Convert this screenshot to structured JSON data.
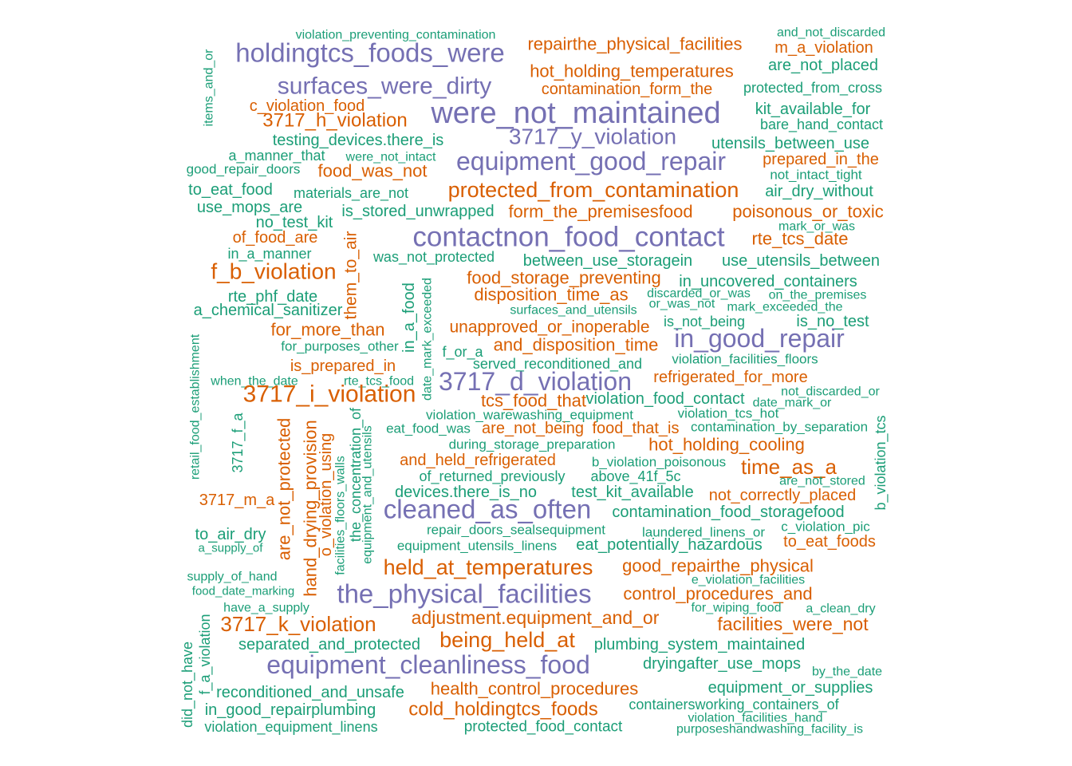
{
  "colors": {
    "purple": "#7570b3",
    "orange": "#d95f02",
    "teal": "#1b9e77"
  },
  "words": [
    {
      "text": "violation_preventing_contamination",
      "color": "teal"
    },
    {
      "text": "repairthe_physical_facilities",
      "color": "orange"
    },
    {
      "text": "and_not_discarded",
      "color": "teal"
    },
    {
      "text": "m_a_violation",
      "color": "orange"
    },
    {
      "text": "holdingtcs_foods_were",
      "color": "purple"
    },
    {
      "text": "are_not_placed",
      "color": "teal"
    },
    {
      "text": "items_and_or",
      "color": "teal"
    },
    {
      "text": "hot_holding_temperatures",
      "color": "orange"
    },
    {
      "text": "surfaces_were_dirty",
      "color": "purple"
    },
    {
      "text": "contamination_form_the",
      "color": "orange"
    },
    {
      "text": "protected_from_cross",
      "color": "teal"
    },
    {
      "text": "c_violation_food",
      "color": "orange"
    },
    {
      "text": "were_not_maintained",
      "color": "purple"
    },
    {
      "text": "kit_available_for",
      "color": "teal"
    },
    {
      "text": "3717_h_violation",
      "color": "orange"
    },
    {
      "text": "bare_hand_contact",
      "color": "teal"
    },
    {
      "text": "3717_y_violation",
      "color": "purple"
    },
    {
      "text": "testing_devices.there_is",
      "color": "teal"
    },
    {
      "text": "utensils_between_use",
      "color": "teal"
    },
    {
      "text": "a_manner_that",
      "color": "teal"
    },
    {
      "text": "were_not_intact",
      "color": "teal"
    },
    {
      "text": "equipment_good_repair",
      "color": "purple"
    },
    {
      "text": "prepared_in_the",
      "color": "orange"
    },
    {
      "text": "good_repair_doors",
      "color": "teal"
    },
    {
      "text": "food_was_not",
      "color": "orange"
    },
    {
      "text": "not_intact_tight",
      "color": "teal"
    },
    {
      "text": "to_eat_food",
      "color": "teal"
    },
    {
      "text": "materials_are_not",
      "color": "teal"
    },
    {
      "text": "protected_from_contamination",
      "color": "orange"
    },
    {
      "text": "air_dry_without",
      "color": "teal"
    },
    {
      "text": "use_mops_are",
      "color": "teal"
    },
    {
      "text": "is_stored_unwrapped",
      "color": "teal"
    },
    {
      "text": "form_the_premisesfood",
      "color": "orange"
    },
    {
      "text": "poisonous_or_toxic",
      "color": "orange"
    },
    {
      "text": "no_test_kit",
      "color": "teal"
    },
    {
      "text": "mark_or_was",
      "color": "teal"
    },
    {
      "text": "of_food_are",
      "color": "orange"
    },
    {
      "text": "them_to_air",
      "color": "orange"
    },
    {
      "text": "contactnon_food_contact",
      "color": "purple"
    },
    {
      "text": "rte_tcs_date",
      "color": "orange"
    },
    {
      "text": "in_a_manner",
      "color": "teal"
    },
    {
      "text": "was_not_protected",
      "color": "teal"
    },
    {
      "text": "between_use_storagein",
      "color": "teal"
    },
    {
      "text": "use_utensils_between",
      "color": "teal"
    },
    {
      "text": "f_b_violation",
      "color": "orange"
    },
    {
      "text": "in_a_food",
      "color": "teal"
    },
    {
      "text": "food_storage_preventing",
      "color": "orange"
    },
    {
      "text": "in_uncovered_containers",
      "color": "teal"
    },
    {
      "text": "date_mark_exceeded",
      "color": "teal"
    },
    {
      "text": "rte_phf_date",
      "color": "teal"
    },
    {
      "text": "disposition_time_as",
      "color": "orange"
    },
    {
      "text": "discarded_or_was",
      "color": "teal"
    },
    {
      "text": "on_the_premises",
      "color": "teal"
    },
    {
      "text": "a_chemical_sanitizer",
      "color": "teal"
    },
    {
      "text": "surfaces_and_utensils",
      "color": "teal"
    },
    {
      "text": "or_was_not",
      "color": "teal"
    },
    {
      "text": "mark_exceeded_the",
      "color": "teal"
    },
    {
      "text": "for_more_than",
      "color": "orange"
    },
    {
      "text": "is_not_being",
      "color": "teal"
    },
    {
      "text": "is_no_test",
      "color": "teal"
    },
    {
      "text": "retail_food_establishment",
      "color": "teal"
    },
    {
      "text": "unapproved_or_inoperable",
      "color": "orange"
    },
    {
      "text": "for_purposes_other",
      "color": "teal"
    },
    {
      "text": "in_good_repair",
      "color": "purple"
    },
    {
      "text": "f_or_a",
      "color": "teal"
    },
    {
      "text": "and_disposition_time",
      "color": "orange"
    },
    {
      "text": "is_prepared_in",
      "color": "orange"
    },
    {
      "text": "served_reconditioned_and",
      "color": "teal"
    },
    {
      "text": "violation_facilities_floors",
      "color": "teal"
    },
    {
      "text": "when_the_date",
      "color": "teal"
    },
    {
      "text": "rte_tcs_food",
      "color": "teal"
    },
    {
      "text": "3717_d_violation",
      "color": "purple"
    },
    {
      "text": "refrigerated_for_more",
      "color": "orange"
    },
    {
      "text": "3717_i_violation",
      "color": "orange"
    },
    {
      "text": "not_discarded_or",
      "color": "teal"
    },
    {
      "text": "tcs_food_that",
      "color": "orange"
    },
    {
      "text": "violation_food_contact",
      "color": "teal"
    },
    {
      "text": "date_mark_or",
      "color": "teal"
    },
    {
      "text": "3717_f_a",
      "color": "teal"
    },
    {
      "text": "violation_warewashing_equipment",
      "color": "teal"
    },
    {
      "text": "violation_tcs_hot",
      "color": "teal"
    },
    {
      "text": "eat_food_was",
      "color": "teal"
    },
    {
      "text": "are_not_being",
      "color": "orange"
    },
    {
      "text": "food_that_is",
      "color": "orange"
    },
    {
      "text": "contamination_by_separation",
      "color": "teal"
    },
    {
      "text": "the_concentration_of",
      "color": "teal"
    },
    {
      "text": "equipment_and_utensils",
      "color": "teal"
    },
    {
      "text": "during_storage_preparation",
      "color": "teal"
    },
    {
      "text": "hot_holding_cooling",
      "color": "orange"
    },
    {
      "text": "are_not_protected",
      "color": "orange"
    },
    {
      "text": "hand_drying_provision",
      "color": "orange"
    },
    {
      "text": "o_violation_using",
      "color": "orange"
    },
    {
      "text": "and_held_refrigerated",
      "color": "orange"
    },
    {
      "text": "b_violation_poisonous",
      "color": "teal"
    },
    {
      "text": "time_as_a",
      "color": "orange"
    },
    {
      "text": "b_violation_tcs",
      "color": "teal"
    },
    {
      "text": "of_returned_previously",
      "color": "teal"
    },
    {
      "text": "above_41f_5c",
      "color": "teal"
    },
    {
      "text": "are_not_stored",
      "color": "teal"
    },
    {
      "text": "facilities_floors_walls",
      "color": "teal"
    },
    {
      "text": "devices.there_is_no",
      "color": "teal"
    },
    {
      "text": "test_kit_available",
      "color": "teal"
    },
    {
      "text": "not_correctly_placed",
      "color": "orange"
    },
    {
      "text": "3717_m_a",
      "color": "orange"
    },
    {
      "text": "cleaned_as_often",
      "color": "purple"
    },
    {
      "text": "contamination_food_storagefood",
      "color": "teal"
    },
    {
      "text": "repair_doors_sealsequipment",
      "color": "teal"
    },
    {
      "text": "c_violation_pic",
      "color": "teal"
    },
    {
      "text": "to_air_dry",
      "color": "teal"
    },
    {
      "text": "laundered_linens_or",
      "color": "teal"
    },
    {
      "text": "to_eat_foods",
      "color": "orange"
    },
    {
      "text": "a_supply_of",
      "color": "teal"
    },
    {
      "text": "equipment_utensils_linens",
      "color": "teal"
    },
    {
      "text": "eat_potentially_hazardous",
      "color": "teal"
    },
    {
      "text": "held_at_temperatures",
      "color": "orange"
    },
    {
      "text": "good_repairthe_physical",
      "color": "orange"
    },
    {
      "text": "supply_of_hand",
      "color": "teal"
    },
    {
      "text": "e_violation_facilities",
      "color": "teal"
    },
    {
      "text": "food_date_marking",
      "color": "teal"
    },
    {
      "text": "the_physical_facilities",
      "color": "purple"
    },
    {
      "text": "control_procedures_and",
      "color": "orange"
    },
    {
      "text": "have_a_supply",
      "color": "teal"
    },
    {
      "text": "for_wiping_food",
      "color": "teal"
    },
    {
      "text": "a_clean_dry",
      "color": "teal"
    },
    {
      "text": "adjustment.equipment_and_or",
      "color": "orange"
    },
    {
      "text": "3717_k_violation",
      "color": "orange"
    },
    {
      "text": "facilities_were_not",
      "color": "orange"
    },
    {
      "text": "f_a_violation",
      "color": "teal"
    },
    {
      "text": "being_held_at",
      "color": "orange"
    },
    {
      "text": "separated_and_protected",
      "color": "teal"
    },
    {
      "text": "plumbing_system_maintained",
      "color": "teal"
    },
    {
      "text": "did_not_have",
      "color": "teal"
    },
    {
      "text": "equipment_cleanliness_food",
      "color": "purple"
    },
    {
      "text": "dryingafter_use_mops",
      "color": "teal"
    },
    {
      "text": "by_the_date",
      "color": "teal"
    },
    {
      "text": "health_control_procedures",
      "color": "orange"
    },
    {
      "text": "equipment_or_supplies",
      "color": "teal"
    },
    {
      "text": "reconditioned_and_unsafe",
      "color": "teal"
    },
    {
      "text": "cold_holdingtcs_foods",
      "color": "orange"
    },
    {
      "text": "containersworking_containers_of",
      "color": "teal"
    },
    {
      "text": "in_good_repairplumbing",
      "color": "teal"
    },
    {
      "text": "violation_facilities_hand",
      "color": "teal"
    },
    {
      "text": "violation_equipment_linens",
      "color": "teal"
    },
    {
      "text": "protected_food_contact",
      "color": "teal"
    },
    {
      "text": "purposeshandwashing_facility_is",
      "color": "teal"
    }
  ]
}
